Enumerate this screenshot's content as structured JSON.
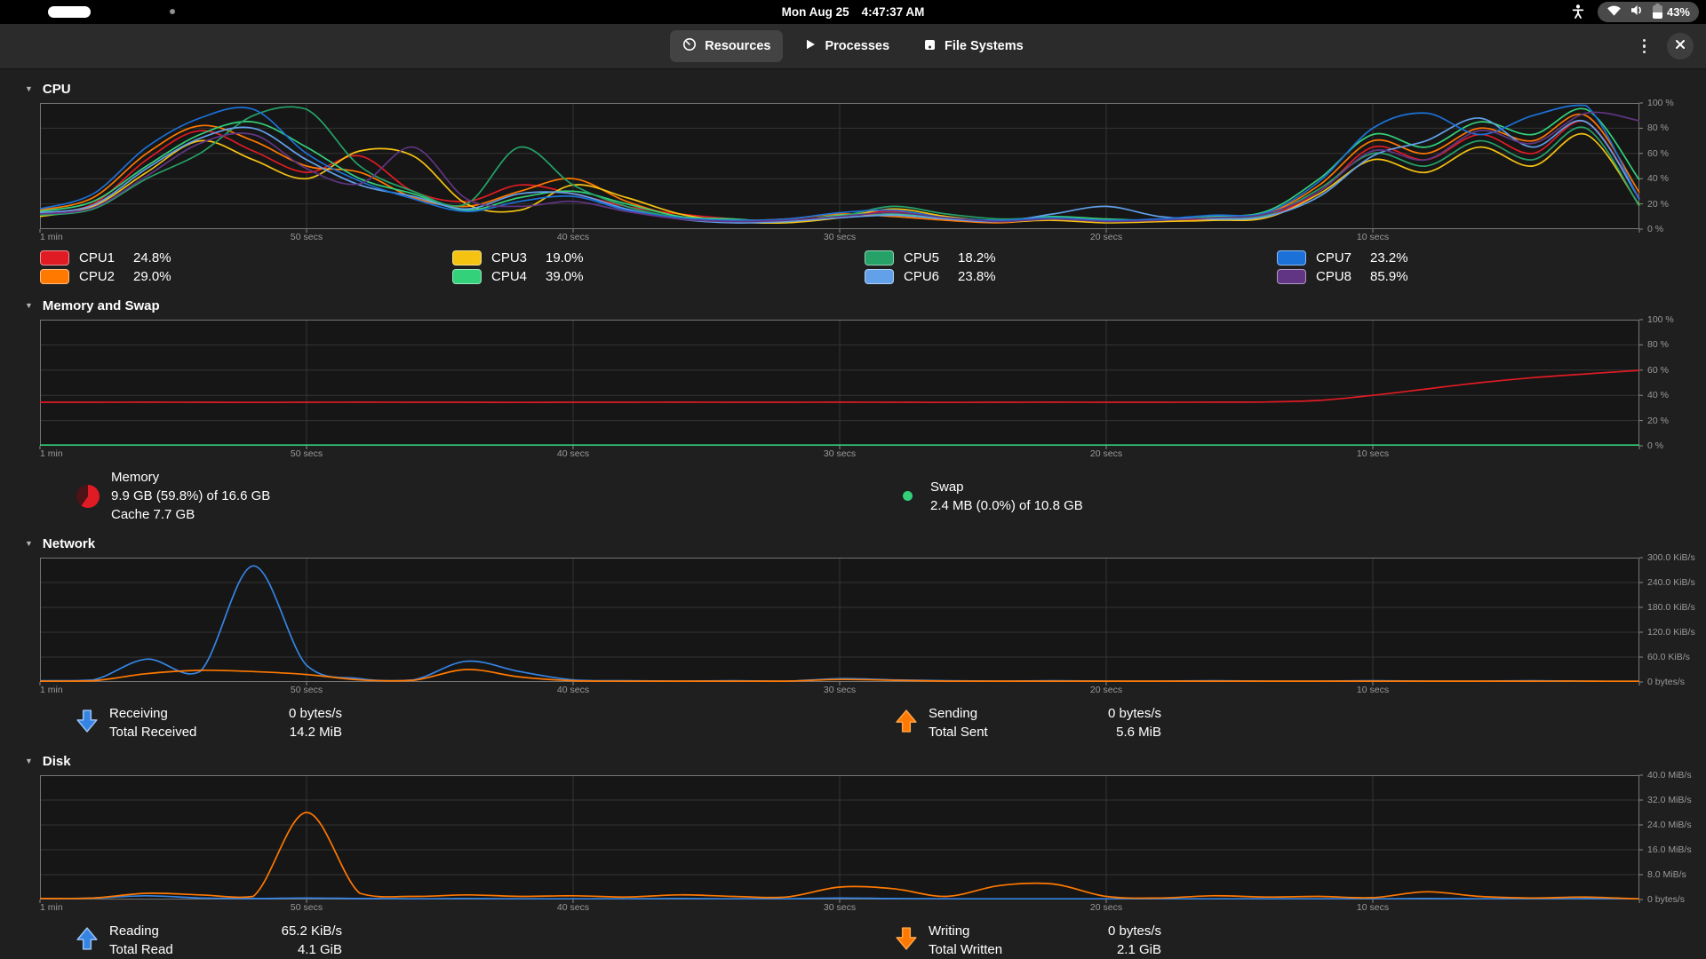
{
  "shell": {
    "clock_date": "Mon Aug 25",
    "clock_time": "4:47:37 AM",
    "battery_percent": "43%"
  },
  "header": {
    "tabs": [
      {
        "label": "Resources",
        "icon": "gauge-icon",
        "selected": true
      },
      {
        "label": "Processes",
        "icon": "play-icon",
        "selected": false
      },
      {
        "label": "File Systems",
        "icon": "drive-icon",
        "selected": false
      }
    ]
  },
  "sections": {
    "cpu": {
      "title": "CPU"
    },
    "memory": {
      "title": "Memory and Swap"
    },
    "network": {
      "title": "Network"
    },
    "disk": {
      "title": "Disk"
    }
  },
  "memory_legend": {
    "memory": {
      "name": "Memory",
      "usage": "9.9 GB (59.8%) of 16.6 GB",
      "cache": "Cache 7.7 GB"
    },
    "swap": {
      "name": "Swap",
      "usage": "2.4 MB (0.0%) of 10.8 GB"
    }
  },
  "network_legend": {
    "receiving": {
      "label": "Receiving",
      "rate": "0 bytes/s",
      "total_label": "Total Received",
      "total": "14.2 MiB"
    },
    "sending": {
      "label": "Sending",
      "rate": "0 bytes/s",
      "total_label": "Total Sent",
      "total": "5.6 MiB"
    }
  },
  "disk_legend": {
    "reading": {
      "label": "Reading",
      "rate": "65.2 KiB/s",
      "total_label": "Total Read",
      "total": "4.1 GiB"
    },
    "writing": {
      "label": "Writing",
      "rate": "0 bytes/s",
      "total_label": "Total Written",
      "total": "2.1 GiB"
    }
  },
  "chart_data": [
    {
      "id": "cpu",
      "type": "line",
      "title": "CPU",
      "ylim": [
        0,
        100
      ],
      "height": 142,
      "grid": true,
      "y_ticks": [
        "100 %",
        "80 %",
        "60 %",
        "40 %",
        "20 %",
        "0 %"
      ],
      "x_ticks": [
        "1 min",
        "50 secs",
        "40 secs",
        "30 secs",
        "20 secs",
        "10 secs"
      ],
      "series": [
        {
          "name": "CPU1",
          "value": "24.8%",
          "color": "#e01b24",
          "values": [
            12,
            20,
            55,
            78,
            62,
            45,
            58,
            30,
            22,
            35,
            28,
            18,
            12,
            8,
            6,
            10,
            14,
            8,
            6,
            9,
            7,
            6,
            8,
            10,
            30,
            65,
            55,
            75,
            60,
            85,
            24.8
          ]
        },
        {
          "name": "CPU2",
          "value": "29.0%",
          "color": "#ff7800",
          "values": [
            15,
            25,
            60,
            82,
            70,
            50,
            45,
            25,
            18,
            30,
            40,
            22,
            10,
            7,
            8,
            12,
            10,
            7,
            5,
            8,
            6,
            7,
            9,
            12,
            35,
            70,
            60,
            80,
            70,
            90,
            29
          ]
        },
        {
          "name": "CPU3",
          "value": "19.0%",
          "color": "#f5c211",
          "values": [
            10,
            18,
            45,
            70,
            55,
            40,
            62,
            58,
            20,
            15,
            35,
            25,
            12,
            6,
            5,
            9,
            16,
            10,
            6,
            7,
            5,
            6,
            7,
            9,
            28,
            55,
            45,
            65,
            50,
            75,
            19
          ]
        },
        {
          "name": "CPU4",
          "value": "39.0%",
          "color": "#33d17a",
          "values": [
            14,
            22,
            50,
            75,
            85,
            65,
            40,
            28,
            15,
            25,
            30,
            20,
            10,
            8,
            6,
            11,
            12,
            9,
            7,
            10,
            8,
            7,
            10,
            14,
            40,
            75,
            65,
            85,
            75,
            95,
            39
          ]
        },
        {
          "name": "CPU5",
          "value": "18.2%",
          "color": "#26a269",
          "values": [
            11,
            16,
            40,
            60,
            90,
            95,
            50,
            30,
            20,
            65,
            35,
            18,
            9,
            6,
            7,
            10,
            18,
            12,
            8,
            9,
            6,
            8,
            9,
            11,
            32,
            60,
            50,
            70,
            55,
            80,
            18.2
          ]
        },
        {
          "name": "CPU6",
          "value": "23.8%",
          "color": "#62a0ea",
          "pattern": "dots",
          "values": [
            13,
            19,
            48,
            72,
            80,
            55,
            35,
            26,
            16,
            28,
            28,
            16,
            8,
            5,
            6,
            9,
            11,
            8,
            6,
            12,
            18,
            10,
            8,
            10,
            26,
            58,
            70,
            88,
            65,
            85,
            23.8
          ]
        },
        {
          "name": "CPU7",
          "value": "23.2%",
          "color": "#1c71d8",
          "values": [
            16,
            28,
            65,
            88,
            95,
            60,
            38,
            24,
            14,
            22,
            26,
            15,
            9,
            7,
            8,
            13,
            15,
            9,
            7,
            9,
            7,
            8,
            11,
            13,
            38,
            80,
            92,
            75,
            90,
            98,
            23.2
          ]
        },
        {
          "name": "CPU8",
          "value": "85.9%",
          "color": "#613583",
          "values": [
            12,
            17,
            42,
            68,
            75,
            48,
            36,
            65,
            24,
            18,
            22,
            14,
            8,
            6,
            7,
            10,
            13,
            9,
            6,
            8,
            6,
            7,
            9,
            12,
            30,
            62,
            55,
            78,
            68,
            92,
            85.9
          ]
        }
      ]
    },
    {
      "id": "memory",
      "type": "line",
      "title": "Memory and Swap",
      "ylim": [
        0,
        100
      ],
      "height": 142,
      "grid": true,
      "y_ticks": [
        "100 %",
        "80 %",
        "60 %",
        "40 %",
        "20 %",
        "0 %"
      ],
      "x_ticks": [
        "1 min",
        "50 secs",
        "40 secs",
        "30 secs",
        "20 secs",
        "10 secs"
      ],
      "series": [
        {
          "name": "Memory",
          "value": "59.8%",
          "color": "#e01b24",
          "values": [
            34.5,
            34.5,
            34.6,
            34.5,
            34.4,
            34.5,
            34.6,
            34.5,
            34.5,
            34.4,
            34.5,
            34.5,
            34.6,
            34.5,
            34.5,
            34.6,
            34.5,
            34.4,
            34.5,
            34.6,
            34.5,
            34.5,
            34.6,
            34.7,
            36,
            40,
            45,
            50,
            54,
            57,
            59.8
          ]
        },
        {
          "name": "Swap",
          "value": "0.0%",
          "color": "#33d17a",
          "values": [
            0,
            0,
            0,
            0,
            0,
            0,
            0,
            0,
            0,
            0,
            0,
            0,
            0,
            0,
            0,
            0,
            0,
            0,
            0,
            0,
            0,
            0,
            0,
            0,
            0,
            0,
            0,
            0,
            0,
            0,
            0
          ]
        }
      ]
    },
    {
      "id": "network",
      "type": "line",
      "title": "Network",
      "ylim": [
        0,
        300
      ],
      "unit": "KiB/s",
      "height": 140,
      "grid": true,
      "y_ticks": [
        "300.0 KiB/s",
        "240.0 KiB/s",
        "180.0 KiB/s",
        "120.0 KiB/s",
        "60.0 KiB/s",
        "0 bytes/s"
      ],
      "x_ticks": [
        "1 min",
        "50 secs",
        "40 secs",
        "30 secs",
        "20 secs",
        "10 secs"
      ],
      "series": [
        {
          "name": "Receiving",
          "value": "0 bytes/s",
          "color": "#3584e4",
          "values": [
            3,
            5,
            55,
            25,
            280,
            40,
            8,
            5,
            50,
            25,
            5,
            3,
            2,
            3,
            2,
            8,
            5,
            3,
            2,
            3,
            2,
            2,
            3,
            2,
            2,
            3,
            2,
            2,
            3,
            2,
            0
          ]
        },
        {
          "name": "Sending",
          "value": "0 bytes/s",
          "color": "#ff7800",
          "values": [
            2,
            3,
            20,
            28,
            25,
            18,
            5,
            4,
            30,
            12,
            3,
            2,
            2,
            2,
            2,
            6,
            4,
            2,
            2,
            2,
            2,
            2,
            2,
            2,
            2,
            2,
            2,
            2,
            2,
            2,
            0
          ]
        }
      ]
    },
    {
      "id": "disk",
      "type": "line",
      "title": "Disk",
      "ylim": [
        0,
        40
      ],
      "unit": "MiB/s",
      "height": 140,
      "grid": true,
      "y_ticks": [
        "40.0 MiB/s",
        "32.0 MiB/s",
        "24.0 MiB/s",
        "16.0 MiB/s",
        "8.0 MiB/s",
        "0 bytes/s"
      ],
      "x_ticks": [
        "1 min",
        "50 secs",
        "40 secs",
        "30 secs",
        "20 secs",
        "10 secs"
      ],
      "series": [
        {
          "name": "Reading",
          "value": "65.2 KiB/s",
          "color": "#3584e4",
          "values": [
            0.2,
            0.5,
            1.2,
            0.5,
            0.3,
            0.5,
            0.3,
            0.2,
            0.3,
            0.2,
            0.2,
            0.2,
            0.3,
            0.2,
            0.2,
            0.5,
            0.3,
            0.2,
            0.2,
            0.2,
            0.2,
            0.2,
            0.2,
            0.2,
            0.2,
            0.2,
            0.3,
            0.2,
            0.2,
            0.3,
            0.1
          ]
        },
        {
          "name": "Writing",
          "value": "0 bytes/s",
          "color": "#ff7800",
          "values": [
            0.3,
            0.5,
            2,
            1.5,
            1,
            28,
            2,
            1,
            1.5,
            1,
            1.2,
            0.8,
            1.5,
            1,
            0.8,
            4,
            3.5,
            1,
            4.5,
            5,
            1,
            0.5,
            1.2,
            0.8,
            1,
            0.6,
            2.5,
            1,
            0.5,
            0.8,
            0
          ]
        }
      ]
    }
  ]
}
